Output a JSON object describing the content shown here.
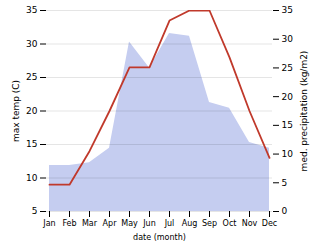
{
  "chart_data": {
    "type": "line",
    "categories": [
      "Jan",
      "Feb",
      "Mar",
      "Apr",
      "May",
      "Jun",
      "Jul",
      "Aug",
      "Sep",
      "Oct",
      "Nov",
      "Dec"
    ],
    "xlabel": "date (month)",
    "ylabel": "max temp (C)",
    "y2label": "med. precipitation (kg/m2)",
    "series": [
      {
        "type": "area",
        "axis": "y2",
        "color": "#c5cdf0",
        "values": [
          8.0,
          8.0,
          8.5,
          11.0,
          29.5,
          25.0,
          31.0,
          30.5,
          19.0,
          18.0,
          12.0,
          11.0
        ]
      },
      {
        "type": "line",
        "color": "#c0392b",
        "values": [
          9.0,
          9.0,
          14.0,
          20.0,
          26.5,
          26.5,
          33.5,
          35.0,
          35.0,
          28.0,
          20.0,
          13.0
        ]
      }
    ],
    "ylim": [
      5,
      35
    ],
    "yticks": [
      5,
      10,
      15,
      20,
      25,
      30,
      35
    ],
    "y2lim": [
      0,
      35
    ],
    "y2ticks": [
      0,
      5,
      10,
      15,
      20,
      25,
      30,
      35
    ],
    "grid": true
  }
}
